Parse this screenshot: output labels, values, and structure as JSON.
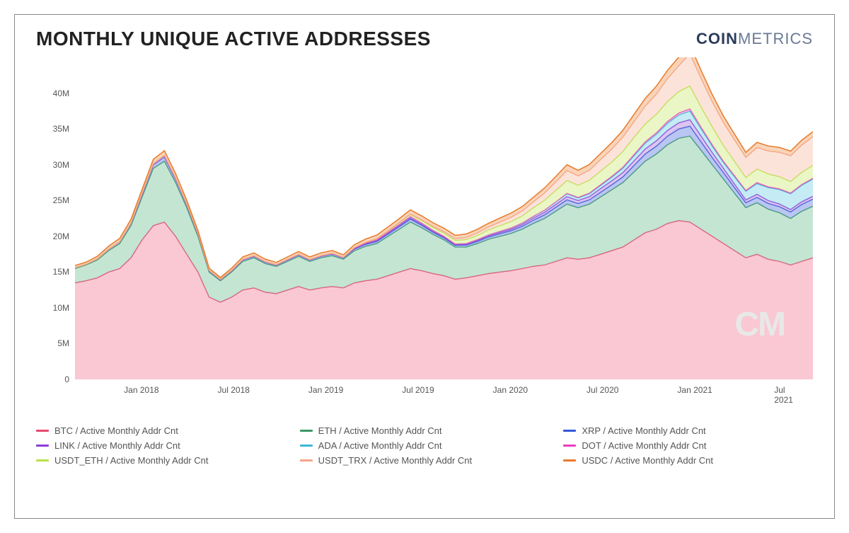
{
  "title": "MONTHLY UNIQUE ACTIVE ADDRESSES",
  "brand": {
    "bold": "COIN",
    "light": "METRICS"
  },
  "watermark": "CM",
  "chart": {
    "type": "stacked-area",
    "background_color": "#ffffff",
    "border_color": "#888888",
    "title_fontsize": 28,
    "title_color": "#222222",
    "axis_label_fontsize": 12,
    "axis_label_color": "#555555",
    "ylim": [
      0,
      45
    ],
    "ytick_step": 5,
    "y_suffix": "M",
    "y_ticks": [
      0,
      5,
      10,
      15,
      20,
      25,
      30,
      35,
      40
    ],
    "x_labels": [
      "Jan 2018",
      "Jul 2018",
      "Jan 2019",
      "Jul 2019",
      "Jan 2020",
      "Jul 2020",
      "Jan 2021",
      "Jul 2021"
    ],
    "x_positions": [
      0.09,
      0.215,
      0.34,
      0.465,
      0.59,
      0.715,
      0.84,
      0.965
    ],
    "line_width": 1.5,
    "fill_opacity": 0.6,
    "series": [
      {
        "name": "BTC",
        "label": "BTC / Active Monthly Addr Cnt",
        "color": "#e8486d",
        "fill_color": "#f5a4b5",
        "data": [
          13.5,
          13.8,
          14.2,
          15.0,
          15.5,
          17.0,
          19.5,
          21.5,
          22.0,
          20.0,
          17.5,
          15.0,
          11.5,
          10.8,
          11.5,
          12.5,
          12.8,
          12.2,
          12.0,
          12.5,
          13.0,
          12.5,
          12.8,
          13.0,
          12.8,
          13.5,
          13.8,
          14.0,
          14.5,
          15.0,
          15.5,
          15.2,
          14.8,
          14.5,
          14.0,
          14.2,
          14.5,
          14.8,
          15.0,
          15.2,
          15.5,
          15.8,
          16.0,
          16.5,
          17.0,
          16.8,
          17.0,
          17.5,
          18.0,
          18.5,
          19.5,
          20.5,
          21.0,
          21.8,
          22.2,
          22.0,
          21.0,
          20.0,
          19.0,
          18.0,
          17.0,
          17.5,
          16.8,
          16.5,
          16.0,
          16.5,
          17.0
        ]
      },
      {
        "name": "ETH",
        "label": "ETH / Active Monthly Addr Cnt",
        "color": "#3a9968",
        "fill_color": "#9fd4b5",
        "data": [
          2.0,
          2.2,
          2.5,
          3.0,
          3.5,
          4.5,
          6.0,
          8.0,
          8.5,
          7.5,
          6.5,
          5.0,
          3.5,
          3.0,
          3.5,
          4.0,
          4.2,
          4.0,
          3.8,
          4.0,
          4.2,
          4.0,
          4.2,
          4.3,
          4.0,
          4.5,
          4.8,
          5.0,
          5.5,
          6.0,
          6.5,
          6.0,
          5.5,
          5.0,
          4.5,
          4.3,
          4.5,
          4.8,
          5.0,
          5.2,
          5.5,
          6.0,
          6.5,
          7.0,
          7.5,
          7.2,
          7.5,
          8.0,
          8.5,
          9.0,
          9.5,
          10.0,
          10.5,
          11.0,
          11.5,
          12.0,
          11.0,
          10.0,
          9.0,
          8.0,
          7.0,
          7.2,
          7.0,
          6.8,
          6.5,
          7.0,
          7.2
        ]
      },
      {
        "name": "XRP",
        "label": "XRP / Active Monthly Addr Cnt",
        "color": "#3357d6",
        "fill_color": "#8ba0e8",
        "data": [
          0.1,
          0.1,
          0.15,
          0.2,
          0.25,
          0.3,
          0.4,
          0.5,
          0.6,
          0.5,
          0.4,
          0.3,
          0.2,
          0.15,
          0.18,
          0.2,
          0.22,
          0.2,
          0.18,
          0.2,
          0.22,
          0.2,
          0.22,
          0.23,
          0.2,
          0.25,
          0.28,
          0.3,
          0.32,
          0.35,
          0.4,
          0.35,
          0.3,
          0.28,
          0.25,
          0.28,
          0.3,
          0.32,
          0.35,
          0.38,
          0.4,
          0.45,
          0.5,
          0.55,
          0.6,
          0.58,
          0.6,
          0.65,
          0.7,
          0.8,
          0.9,
          1.0,
          1.1,
          1.2,
          1.3,
          1.4,
          1.2,
          1.0,
          0.9,
          0.8,
          0.7,
          0.75,
          0.8,
          0.85,
          0.9,
          0.95,
          1.0
        ]
      },
      {
        "name": "LINK",
        "label": "LINK / Active Monthly Addr Cnt",
        "color": "#8a3dd6",
        "fill_color": "#c4a0e8",
        "data": [
          0.0,
          0.0,
          0.0,
          0.0,
          0.0,
          0.0,
          0.0,
          0.0,
          0.0,
          0.0,
          0.0,
          0.0,
          0.0,
          0.0,
          0.0,
          0.0,
          0.0,
          0.0,
          0.0,
          0.0,
          0.0,
          0.0,
          0.0,
          0.0,
          0.0,
          0.05,
          0.08,
          0.1,
          0.12,
          0.15,
          0.18,
          0.15,
          0.12,
          0.1,
          0.08,
          0.1,
          0.12,
          0.15,
          0.18,
          0.2,
          0.25,
          0.3,
          0.35,
          0.4,
          0.45,
          0.42,
          0.45,
          0.5,
          0.55,
          0.6,
          0.65,
          0.7,
          0.75,
          0.8,
          0.85,
          0.9,
          0.8,
          0.7,
          0.6,
          0.5,
          0.4,
          0.42,
          0.4,
          0.38,
          0.35,
          0.38,
          0.4
        ]
      },
      {
        "name": "ADA",
        "label": "ADA / Active Monthly Addr Cnt",
        "color": "#3ab8d6",
        "fill_color": "#9fe0ec",
        "data": [
          0.0,
          0.0,
          0.0,
          0.0,
          0.0,
          0.05,
          0.1,
          0.15,
          0.2,
          0.15,
          0.1,
          0.08,
          0.05,
          0.04,
          0.05,
          0.06,
          0.07,
          0.06,
          0.05,
          0.06,
          0.07,
          0.06,
          0.07,
          0.08,
          0.06,
          0.08,
          0.1,
          0.12,
          0.14,
          0.16,
          0.18,
          0.16,
          0.14,
          0.12,
          0.1,
          0.11,
          0.12,
          0.14,
          0.16,
          0.18,
          0.2,
          0.25,
          0.3,
          0.35,
          0.4,
          0.38,
          0.4,
          0.45,
          0.5,
          0.6,
          0.7,
          0.8,
          0.9,
          1.0,
          1.1,
          1.2,
          1.0,
          0.9,
          0.8,
          1.0,
          1.2,
          1.5,
          1.8,
          2.0,
          2.2,
          2.3,
          2.4
        ]
      },
      {
        "name": "DOT",
        "label": "DOT / Active Monthly Addr Cnt",
        "color": "#e83dc0",
        "fill_color": "#f5a0e0",
        "data": [
          0.0,
          0.0,
          0.0,
          0.0,
          0.0,
          0.0,
          0.0,
          0.0,
          0.0,
          0.0,
          0.0,
          0.0,
          0.0,
          0.0,
          0.0,
          0.0,
          0.0,
          0.0,
          0.0,
          0.0,
          0.0,
          0.0,
          0.0,
          0.0,
          0.0,
          0.0,
          0.0,
          0.0,
          0.0,
          0.0,
          0.0,
          0.0,
          0.0,
          0.0,
          0.0,
          0.0,
          0.0,
          0.0,
          0.0,
          0.0,
          0.0,
          0.0,
          0.0,
          0.0,
          0.05,
          0.06,
          0.08,
          0.1,
          0.12,
          0.15,
          0.18,
          0.2,
          0.22,
          0.25,
          0.28,
          0.3,
          0.25,
          0.2,
          0.18,
          0.15,
          0.12,
          0.13,
          0.12,
          0.11,
          0.1,
          0.11,
          0.12
        ]
      },
      {
        "name": "USDT_ETH",
        "label": "USDT_ETH / Active Monthly Addr Cnt",
        "color": "#b8e048",
        "fill_color": "#dcf0a0",
        "data": [
          0.0,
          0.0,
          0.0,
          0.0,
          0.0,
          0.0,
          0.0,
          0.0,
          0.0,
          0.0,
          0.0,
          0.0,
          0.0,
          0.0,
          0.0,
          0.0,
          0.0,
          0.0,
          0.0,
          0.0,
          0.0,
          0.0,
          0.0,
          0.0,
          0.0,
          0.05,
          0.1,
          0.15,
          0.2,
          0.25,
          0.3,
          0.35,
          0.4,
          0.45,
          0.5,
          0.55,
          0.6,
          0.7,
          0.8,
          0.9,
          1.0,
          1.2,
          1.4,
          1.6,
          1.8,
          1.7,
          1.8,
          1.9,
          2.0,
          2.2,
          2.4,
          2.5,
          2.6,
          2.8,
          3.0,
          3.2,
          2.8,
          2.5,
          2.2,
          2.0,
          1.8,
          1.9,
          1.8,
          1.7,
          1.6,
          1.7,
          1.8
        ]
      },
      {
        "name": "USDT_TRX",
        "label": "USDT_TRX / Active Monthly Addr Cnt",
        "color": "#f5a48a",
        "fill_color": "#fad0c0",
        "data": [
          0.0,
          0.0,
          0.0,
          0.0,
          0.0,
          0.0,
          0.0,
          0.0,
          0.0,
          0.0,
          0.0,
          0.0,
          0.0,
          0.0,
          0.0,
          0.0,
          0.0,
          0.0,
          0.0,
          0.0,
          0.0,
          0.0,
          0.0,
          0.0,
          0.0,
          0.0,
          0.0,
          0.0,
          0.0,
          0.0,
          0.05,
          0.1,
          0.15,
          0.2,
          0.25,
          0.3,
          0.35,
          0.4,
          0.5,
          0.6,
          0.7,
          0.8,
          1.0,
          1.2,
          1.4,
          1.3,
          1.4,
          1.6,
          1.8,
          2.0,
          2.2,
          2.5,
          2.8,
          3.2,
          3.6,
          4.5,
          4.0,
          3.5,
          3.2,
          3.0,
          2.8,
          3.0,
          3.2,
          3.4,
          3.6,
          3.8,
          4.0
        ]
      },
      {
        "name": "USDC",
        "label": "USDC / Active Monthly Addr Cnt",
        "color": "#e87a2a",
        "fill_color": "#f5b888",
        "data": [
          0.3,
          0.3,
          0.35,
          0.4,
          0.45,
          0.5,
          0.55,
          0.6,
          0.65,
          0.6,
          0.5,
          0.4,
          0.3,
          0.25,
          0.3,
          0.35,
          0.38,
          0.35,
          0.32,
          0.35,
          0.38,
          0.35,
          0.38,
          0.4,
          0.35,
          0.4,
          0.45,
          0.5,
          0.52,
          0.55,
          0.58,
          0.55,
          0.5,
          0.48,
          0.45,
          0.48,
          0.5,
          0.52,
          0.55,
          0.58,
          0.6,
          0.65,
          0.7,
          0.75,
          0.8,
          0.78,
          0.8,
          0.85,
          0.9,
          0.95,
          1.0,
          1.05,
          1.1,
          1.15,
          1.2,
          1.25,
          1.1,
          1.0,
          0.9,
          0.8,
          0.7,
          0.72,
          0.7,
          0.68,
          0.65,
          0.68,
          0.7
        ]
      }
    ]
  },
  "legend_items": [
    {
      "label": "BTC / Active Monthly Addr Cnt",
      "color": "#e8486d"
    },
    {
      "label": "ETH / Active Monthly Addr Cnt",
      "color": "#3a9968"
    },
    {
      "label": "XRP / Active Monthly Addr Cnt",
      "color": "#3357d6"
    },
    {
      "label": "LINK / Active Monthly Addr Cnt",
      "color": "#8a3dd6"
    },
    {
      "label": "ADA / Active Monthly Addr Cnt",
      "color": "#3ab8d6"
    },
    {
      "label": "DOT / Active Monthly Addr Cnt",
      "color": "#e83dc0"
    },
    {
      "label": "USDT_ETH / Active Monthly Addr Cnt",
      "color": "#b8e048"
    },
    {
      "label": "USDT_TRX / Active Monthly Addr Cnt",
      "color": "#f5a48a"
    },
    {
      "label": "USDC / Active Monthly Addr Cnt",
      "color": "#e87a2a"
    }
  ]
}
